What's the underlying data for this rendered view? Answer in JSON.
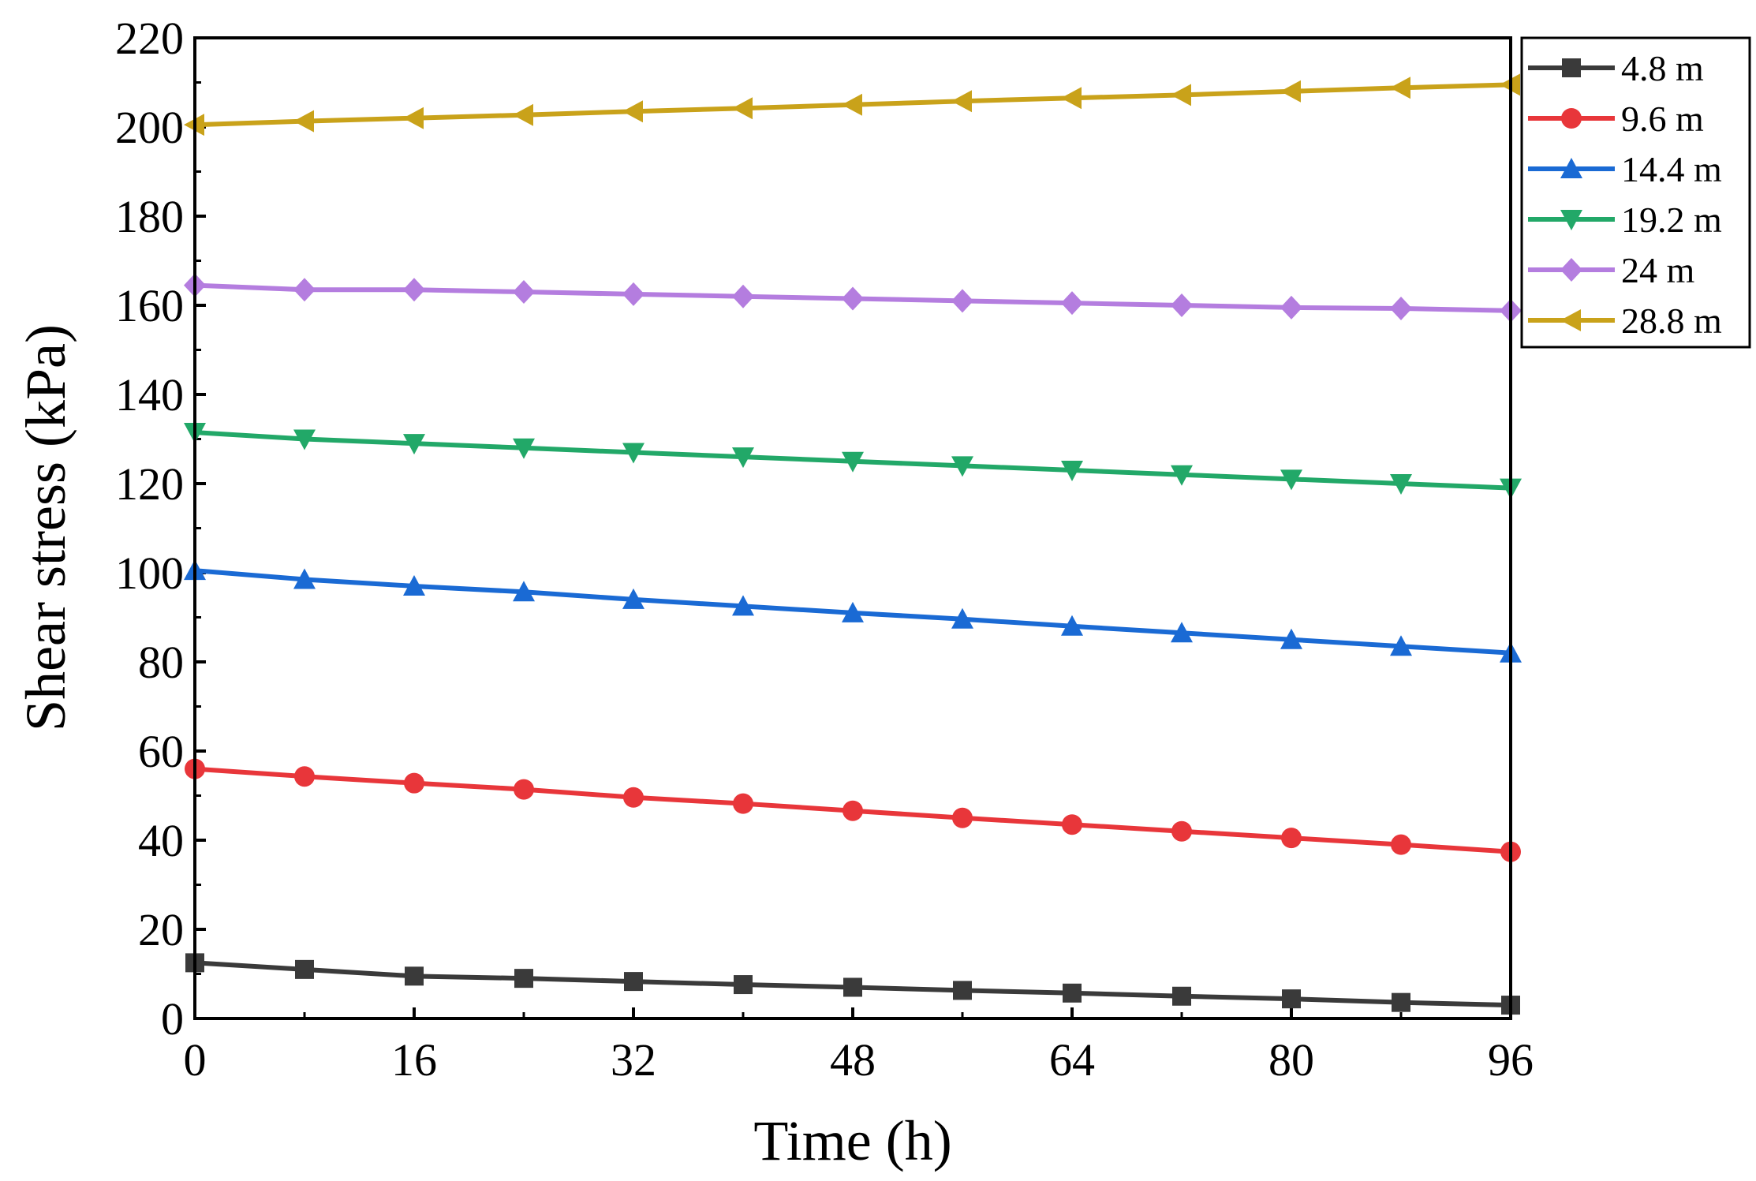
{
  "chart_data": {
    "type": "line",
    "title": "",
    "xlabel": "Time (h)",
    "ylabel": "Shear stress (kPa)",
    "xlim": [
      0,
      96
    ],
    "ylim": [
      0,
      220
    ],
    "xticks": [
      0,
      16,
      32,
      48,
      64,
      80,
      96
    ],
    "yticks": [
      0,
      20,
      40,
      60,
      80,
      100,
      120,
      140,
      160,
      180,
      200,
      220
    ],
    "x": [
      0,
      8,
      16,
      24,
      32,
      40,
      48,
      56,
      64,
      72,
      80,
      88,
      96
    ],
    "grid": false,
    "legend_position": "outside-top-right",
    "series": [
      {
        "name": "4.8 m",
        "color": "#3a3a3a",
        "marker": "square",
        "values": [
          12.5,
          11,
          9.5,
          9,
          8.3,
          7.6,
          7,
          6.3,
          5.7,
          5,
          4.4,
          3.6,
          3
        ]
      },
      {
        "name": "9.6 m",
        "color": "#e8363a",
        "marker": "circle",
        "values": [
          56,
          54.3,
          52.8,
          51.4,
          49.6,
          48.2,
          46.6,
          45,
          43.5,
          42,
          40.5,
          39,
          37.4
        ]
      },
      {
        "name": "14.4 m",
        "color": "#1a6ad4",
        "marker": "triangle-up",
        "values": [
          100.5,
          98.5,
          97,
          95.7,
          94,
          92.5,
          91,
          89.6,
          88,
          86.5,
          85,
          83.5,
          82
        ]
      },
      {
        "name": "19.2 m",
        "color": "#22a868",
        "marker": "triangle-down",
        "values": [
          131.5,
          130,
          129,
          128,
          127,
          126,
          125,
          124,
          123,
          122,
          121,
          120,
          119
        ]
      },
      {
        "name": "24 m",
        "color": "#b47ddf",
        "marker": "diamond",
        "values": [
          164.5,
          163.5,
          163.5,
          163,
          162.5,
          162,
          161.5,
          161,
          160.5,
          160,
          159.5,
          159.3,
          158.8
        ]
      },
      {
        "name": "28.8 m",
        "color": "#c9a21a",
        "marker": "triangle-left",
        "values": [
          200.5,
          201.3,
          202,
          202.7,
          203.5,
          204.2,
          205,
          205.8,
          206.5,
          207.2,
          208,
          208.8,
          209.5
        ]
      }
    ]
  }
}
